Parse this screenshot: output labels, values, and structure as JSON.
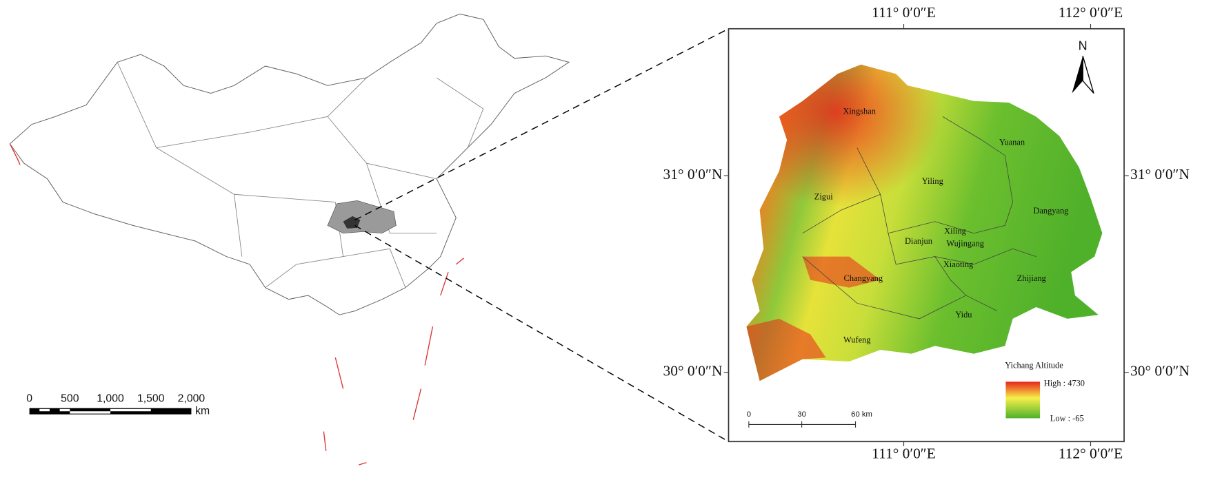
{
  "overview": {
    "scale_bar": {
      "labels": [
        "0",
        "500",
        "1,000",
        "1,500",
        "2,000"
      ],
      "unit": "km"
    }
  },
  "detail": {
    "coords": {
      "top": [
        "111° 0′0″E",
        "112° 0′0″E"
      ],
      "bottom": [
        "111° 0′0″E",
        "112° 0′0″E"
      ],
      "left": [
        "31° 0′0″N",
        "30° 0′0″N"
      ],
      "right": [
        "31° 0′0″N",
        "30° 0′0″N"
      ]
    },
    "north": "N",
    "places": [
      "Xingshan",
      "Yuanan",
      "Yiling",
      "Zigui",
      "Dangyang",
      "Xiling",
      "Dianjun",
      "Wujingang",
      "Xiaoting",
      "Changyang",
      "Zhijiang",
      "Yidu",
      "Wufeng"
    ],
    "legend": {
      "title": "Yichang Altitude",
      "high": "High : 4730",
      "low": "Low : -65"
    },
    "scale_bar": {
      "labels": [
        "0",
        "30",
        "60 km"
      ]
    }
  }
}
